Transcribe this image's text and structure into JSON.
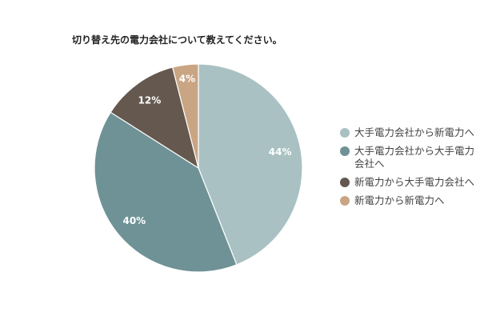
{
  "chart_data": {
    "type": "pie",
    "title": "切り替え先の電力会社について教えてください。",
    "categories": [
      "大手電力会社から新電力へ",
      "大手電力会社から大手電力会社へ",
      "新電力から大手電力会社へ",
      "新電力から新電力へ"
    ],
    "values": [
      44,
      40,
      12,
      4
    ],
    "value_labels": [
      "44%",
      "40%",
      "12%",
      "4%"
    ],
    "colors": [
      "#a9c1c2",
      "#6f9296",
      "#65584f",
      "#c9a584"
    ],
    "legend": "right"
  }
}
